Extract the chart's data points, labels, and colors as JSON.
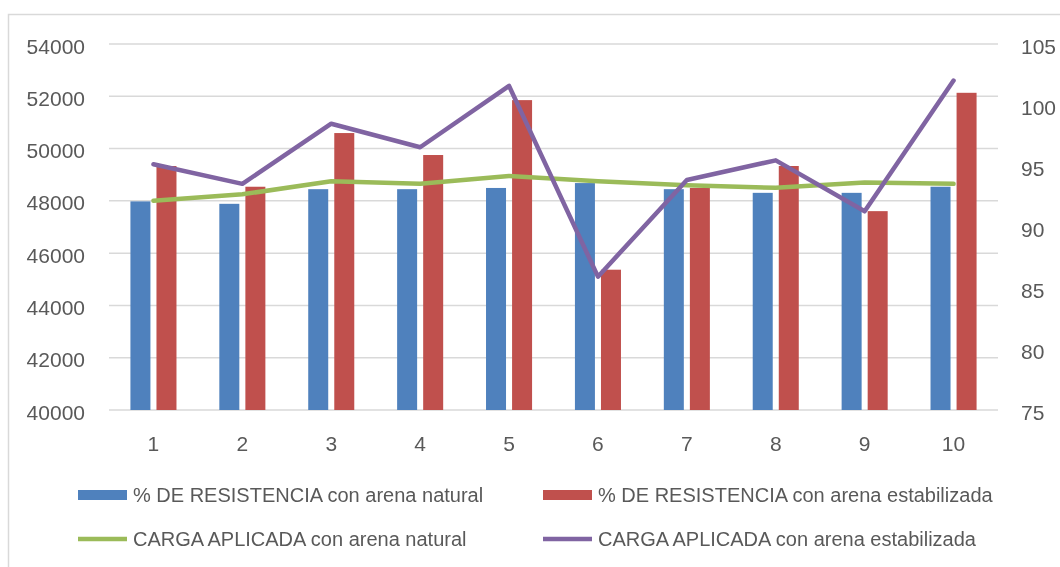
{
  "chart_data": {
    "type": "bar",
    "categories": [
      "1",
      "2",
      "3",
      "4",
      "5",
      "6",
      "7",
      "8",
      "9",
      "10"
    ],
    "series": [
      {
        "name": "% DE RESISTENCIA con arena natural",
        "color": "#4f81bd",
        "axis": "y2",
        "values": [
          92.1,
          91.9,
          93.1,
          93.1,
          93.2,
          93.6,
          93.1,
          92.8,
          92.8,
          93.3
        ]
      },
      {
        "name": "% DE RESISTENCIA con arena estabilizada",
        "color": "#c0504d",
        "axis": "y2",
        "values": [
          95.0,
          93.3,
          97.7,
          95.9,
          100.4,
          86.5,
          93.2,
          95.0,
          91.3,
          101.0
        ]
      },
      {
        "name": "CARGA APLICADA con arena natural",
        "type": "line",
        "color": "#9bbb59",
        "values": [
          48000,
          48250,
          48750,
          48650,
          48950,
          48750,
          48600,
          48500,
          48700,
          48650
        ]
      },
      {
        "name": "CARGA APLICADA con arena estabilizada",
        "type": "line",
        "color": "#8064a2",
        "values": [
          49400,
          48650,
          50950,
          50050,
          52400,
          45100,
          48800,
          49550,
          47600,
          52600
        ]
      }
    ],
    "ylim": [
      40000,
      54000
    ],
    "yticks": [
      40000,
      42000,
      44000,
      46000,
      48000,
      50000,
      52000,
      54000
    ],
    "y2lim": [
      75,
      105
    ],
    "y2ticks": [
      75,
      80,
      85,
      90,
      95,
      100,
      105
    ],
    "grid": "y",
    "legend": "bottom"
  }
}
